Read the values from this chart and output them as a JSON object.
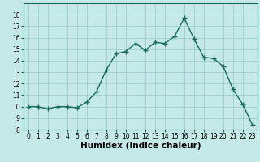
{
  "x": [
    0,
    1,
    2,
    3,
    4,
    5,
    6,
    7,
    8,
    9,
    10,
    11,
    12,
    13,
    14,
    15,
    16,
    17,
    18,
    19,
    20,
    21,
    22,
    23
  ],
  "y": [
    10,
    10,
    9.8,
    10,
    10,
    9.9,
    10.4,
    11.3,
    13.2,
    14.6,
    14.8,
    15.5,
    14.9,
    15.6,
    15.5,
    16.1,
    17.7,
    15.9,
    14.3,
    14.2,
    13.5,
    11.5,
    10.2,
    8.4
  ],
  "line_color": "#1a6b5a",
  "marker": "+",
  "marker_size": 4,
  "marker_linewidth": 1.0,
  "background_color": "#c5e8e8",
  "grid_color": "#9dcece",
  "xlabel": "Humidex (Indice chaleur)",
  "xlim": [
    -0.5,
    23.5
  ],
  "ylim": [
    8,
    19
  ],
  "yticks": [
    8,
    9,
    10,
    11,
    12,
    13,
    14,
    15,
    16,
    17,
    18
  ],
  "xticks": [
    0,
    1,
    2,
    3,
    4,
    5,
    6,
    7,
    8,
    9,
    10,
    11,
    12,
    13,
    14,
    15,
    16,
    17,
    18,
    19,
    20,
    21,
    22,
    23
  ],
  "tick_labelsize": 5.5,
  "xlabel_fontsize": 7.5,
  "linewidth": 1.0
}
